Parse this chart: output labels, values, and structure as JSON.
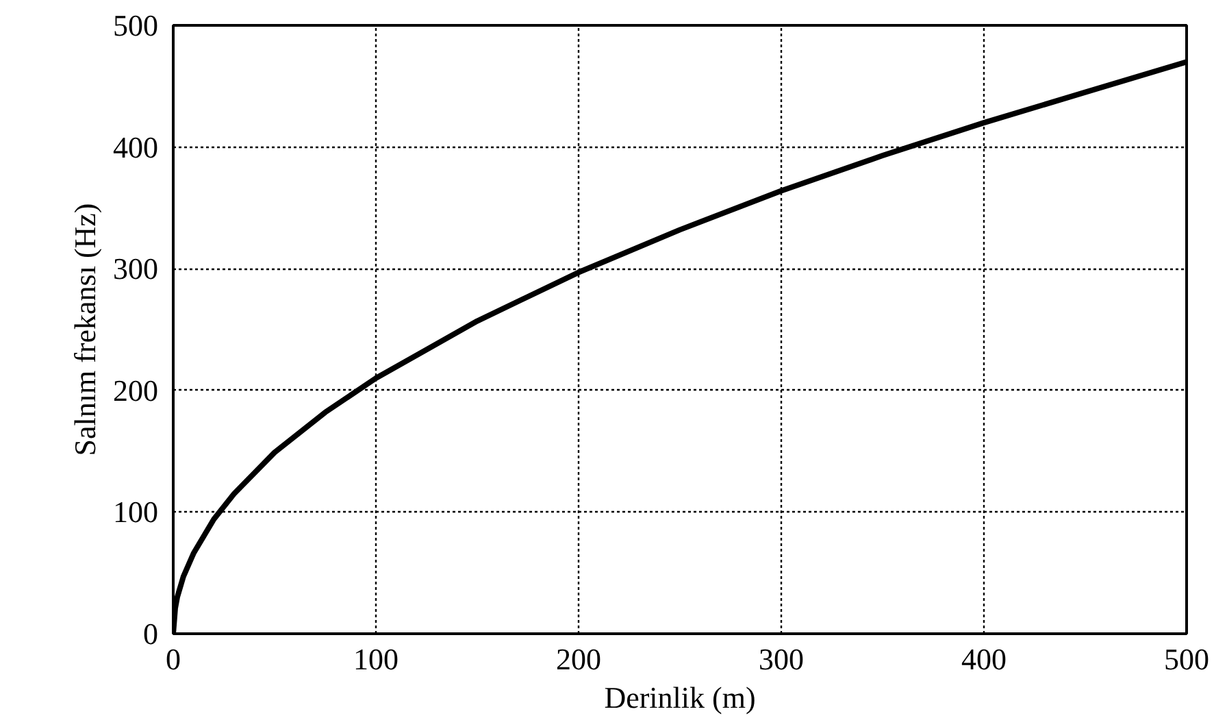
{
  "chart_data": {
    "type": "line",
    "xlabel": "Derinlik (m)",
    "ylabel": "Salnım frekansı (Hz)",
    "x": [
      0,
      1,
      2,
      5,
      10,
      20,
      30,
      50,
      75,
      100,
      150,
      200,
      250,
      300,
      350,
      400,
      450,
      500
    ],
    "series": [
      {
        "color": "#000000",
        "values": [
          0,
          21,
          30,
          47,
          66,
          94,
          115,
          149,
          182,
          210,
          257,
          297,
          332,
          364,
          393,
          420,
          445,
          470
        ]
      }
    ],
    "xlim": [
      0,
      500
    ],
    "ylim": [
      0,
      500
    ],
    "xticks": [
      0,
      100,
      200,
      300,
      400,
      500
    ],
    "yticks": [
      0,
      100,
      200,
      300,
      400,
      500
    ],
    "grid": true,
    "line_style": "solid",
    "marker": "none"
  }
}
